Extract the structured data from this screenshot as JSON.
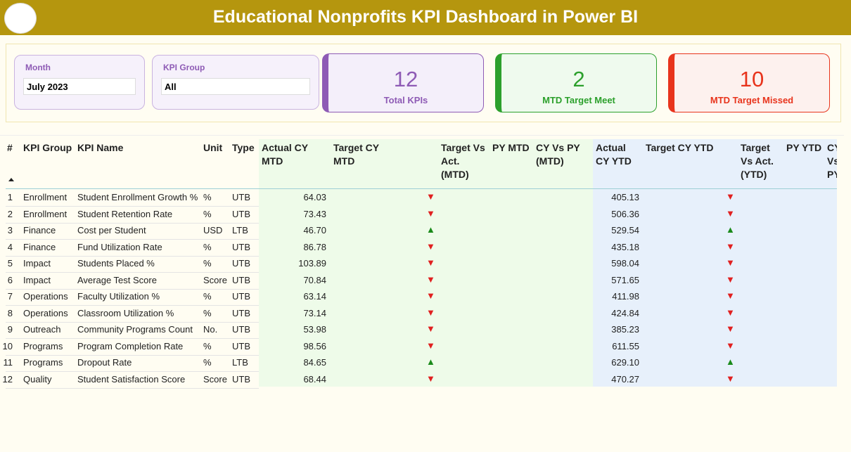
{
  "header": {
    "title": "Educational Nonprofits KPI Dashboard in Power BI"
  },
  "slicers": [
    {
      "label": "Month",
      "value": "July 2023"
    },
    {
      "label": "KPI Group",
      "value": "All"
    }
  ],
  "cards": [
    {
      "value": "12",
      "label": "Total KPIs",
      "color": "#8e5bb5",
      "bg": "#f4effa"
    },
    {
      "value": "2",
      "label": "MTD Target Meet",
      "color": "#2ca02c",
      "bg": "#effaee"
    },
    {
      "value": "10",
      "label": "MTD Target Missed",
      "color": "#e8341c",
      "bg": "#fdf1ee"
    }
  ],
  "table": {
    "columns": [
      "#",
      "KPI Group",
      "KPI Name",
      "Unit",
      "Type",
      "Actual CY MTD",
      "Target CY MTD",
      "Target Vs Act. (MTD)",
      "PY MTD",
      "CY Vs PY (MTD)",
      "Actual CY YTD",
      "Target CY YTD",
      "Target Vs Act. (YTD)",
      "PY YTD",
      "CY Vs PY (YTD)"
    ],
    "rows": [
      {
        "no": "1",
        "group": "Enrollment",
        "name": "Student Enrollment Growth %",
        "unit": "%",
        "type": "UTB",
        "actual_mtd": "64.03",
        "status_mtd": {
          "symbol": "▼",
          "color": "#e02020"
        },
        "actual_ytd": "405.13",
        "status_ytd": {
          "symbol": "▼",
          "color": "#e02020"
        }
      },
      {
        "no": "2",
        "group": "Enrollment",
        "name": "Student Retention Rate",
        "unit": "%",
        "type": "UTB",
        "actual_mtd": "73.43",
        "status_mtd": {
          "symbol": "▼",
          "color": "#e02020"
        },
        "actual_ytd": "506.36",
        "status_ytd": {
          "symbol": "▼",
          "color": "#e02020"
        }
      },
      {
        "no": "3",
        "group": "Finance",
        "name": "Cost per Student",
        "unit": "USD",
        "type": "LTB",
        "actual_mtd": "46.70",
        "status_mtd": {
          "symbol": "▲",
          "color": "#1a8a1a"
        },
        "actual_ytd": "529.54",
        "status_ytd": {
          "symbol": "▲",
          "color": "#1a8a1a"
        }
      },
      {
        "no": "4",
        "group": "Finance",
        "name": "Fund Utilization Rate",
        "unit": "%",
        "type": "UTB",
        "actual_mtd": "86.78",
        "status_mtd": {
          "symbol": "▼",
          "color": "#e02020"
        },
        "actual_ytd": "435.18",
        "status_ytd": {
          "symbol": "▼",
          "color": "#e02020"
        }
      },
      {
        "no": "5",
        "group": "Impact",
        "name": "Students Placed %",
        "unit": "%",
        "type": "UTB",
        "actual_mtd": "103.89",
        "status_mtd": {
          "symbol": "▼",
          "color": "#e02020"
        },
        "actual_ytd": "598.04",
        "status_ytd": {
          "symbol": "▼",
          "color": "#e02020"
        }
      },
      {
        "no": "6",
        "group": "Impact",
        "name": "Average Test Score",
        "unit": "Score",
        "type": "UTB",
        "actual_mtd": "70.84",
        "status_mtd": {
          "symbol": "▼",
          "color": "#e02020"
        },
        "actual_ytd": "571.65",
        "status_ytd": {
          "symbol": "▼",
          "color": "#e02020"
        }
      },
      {
        "no": "7",
        "group": "Operations",
        "name": "Faculty Utilization %",
        "unit": "%",
        "type": "UTB",
        "actual_mtd": "63.14",
        "status_mtd": {
          "symbol": "▼",
          "color": "#e02020"
        },
        "actual_ytd": "411.98",
        "status_ytd": {
          "symbol": "▼",
          "color": "#e02020"
        }
      },
      {
        "no": "8",
        "group": "Operations",
        "name": "Classroom Utilization %",
        "unit": "%",
        "type": "UTB",
        "actual_mtd": "73.14",
        "status_mtd": {
          "symbol": "▼",
          "color": "#e02020"
        },
        "actual_ytd": "424.84",
        "status_ytd": {
          "symbol": "▼",
          "color": "#e02020"
        }
      },
      {
        "no": "9",
        "group": "Outreach",
        "name": "Community Programs Count",
        "unit": "No.",
        "type": "UTB",
        "actual_mtd": "53.98",
        "status_mtd": {
          "symbol": "▼",
          "color": "#e02020"
        },
        "actual_ytd": "385.23",
        "status_ytd": {
          "symbol": "▼",
          "color": "#e02020"
        }
      },
      {
        "no": "10",
        "group": "Programs",
        "name": "Program Completion Rate",
        "unit": "%",
        "type": "UTB",
        "actual_mtd": "98.56",
        "status_mtd": {
          "symbol": "▼",
          "color": "#e02020"
        },
        "actual_ytd": "611.55",
        "status_ytd": {
          "symbol": "▼",
          "color": "#e02020"
        }
      },
      {
        "no": "11",
        "group": "Programs",
        "name": "Dropout Rate",
        "unit": "%",
        "type": "LTB",
        "actual_mtd": "84.65",
        "status_mtd": {
          "symbol": "▲",
          "color": "#1a8a1a"
        },
        "actual_ytd": "629.10",
        "status_ytd": {
          "symbol": "▲",
          "color": "#1a8a1a"
        }
      },
      {
        "no": "12",
        "group": "Quality",
        "name": "Student Satisfaction Score",
        "unit": "Score",
        "type": "UTB",
        "actual_mtd": "68.44",
        "status_mtd": {
          "symbol": "▼",
          "color": "#e02020"
        },
        "actual_ytd": "470.27",
        "status_ytd": {
          "symbol": "▼",
          "color": "#e02020"
        }
      }
    ]
  }
}
